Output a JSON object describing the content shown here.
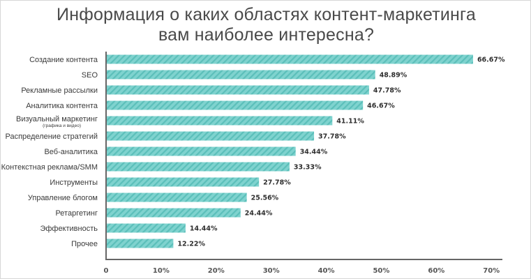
{
  "chart_data": {
    "type": "bar",
    "orientation": "horizontal",
    "title_lines": [
      "Информация о каких областях контент-маркетинга",
      "вам наиболее интересна?"
    ],
    "categories": [
      "Создание контента",
      "SEO",
      "Рекламные рассылки",
      "Аналитика контента",
      "Визуальный маркетинг",
      "Распределение стратегий",
      "Веб-аналитика",
      "Контекстная реклама/SMM",
      "Инструменты",
      "Управление блогом",
      "Ретаргетинг",
      "Эффективность",
      "Прочее"
    ],
    "category_notes": [
      "",
      "",
      "",
      "",
      "(графика и видео)",
      "",
      "",
      "",
      "",
      "",
      "",
      "",
      ""
    ],
    "values": [
      66.67,
      48.89,
      47.78,
      46.67,
      41.11,
      37.78,
      34.44,
      33.33,
      27.78,
      25.56,
      24.44,
      14.44,
      12.22
    ],
    "value_labels": [
      "66.67%",
      "48.89%",
      "47.78%",
      "46.67%",
      "41.11%",
      "37.78%",
      "34.44%",
      "33.33%",
      "27.78%",
      "25.56%",
      "24.44%",
      "14.44%",
      "12.22%"
    ],
    "x_ticks": [
      0,
      10,
      20,
      30,
      40,
      50,
      60,
      70
    ],
    "x_tick_labels": [
      "0",
      "10%",
      "20%",
      "30%",
      "40%",
      "50%",
      "60%",
      "70%"
    ],
    "xlim": [
      0,
      72
    ],
    "grid": false,
    "legend": "none",
    "bar_color": "#7fd3cf",
    "bar_stripe_color": "#5cbfba",
    "axis_color": "#666666"
  }
}
